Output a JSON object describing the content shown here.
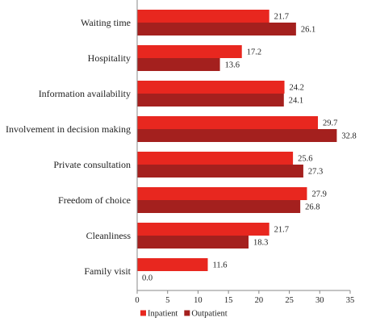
{
  "chart_data": {
    "type": "bar",
    "orientation": "horizontal",
    "categories": [
      "Waiting time",
      "Hospitality",
      "Information availability",
      "Involvement in decision making",
      "Private consultation",
      "Freedom of choice",
      "Cleanliness",
      "Family visit"
    ],
    "series": [
      {
        "name": "Inpatient",
        "color": "#e8271f",
        "values": [
          21.7,
          17.2,
          24.2,
          29.7,
          25.6,
          27.9,
          21.7,
          11.6
        ],
        "labels": [
          "21.7",
          "17.2",
          "24.2",
          "29.7",
          "25.6",
          "27.9",
          "21.7",
          "11.6"
        ]
      },
      {
        "name": "Outpatient",
        "color": "#a4201e",
        "values": [
          26.1,
          13.6,
          24.1,
          32.8,
          27.3,
          26.8,
          18.3,
          0.0
        ],
        "labels": [
          "26.1",
          "13.6",
          "24.1",
          "32.8",
          "27.3",
          "26.8",
          "18.3",
          "0.0"
        ]
      }
    ],
    "xlim": [
      0,
      35
    ],
    "xticks": [
      0,
      5,
      10,
      15,
      20,
      25,
      30,
      35
    ],
    "xtick_labels": [
      "0",
      "5",
      "10",
      "15",
      "20",
      "25",
      "30",
      "35"
    ],
    "grid": false,
    "legend_position": "bottom"
  }
}
